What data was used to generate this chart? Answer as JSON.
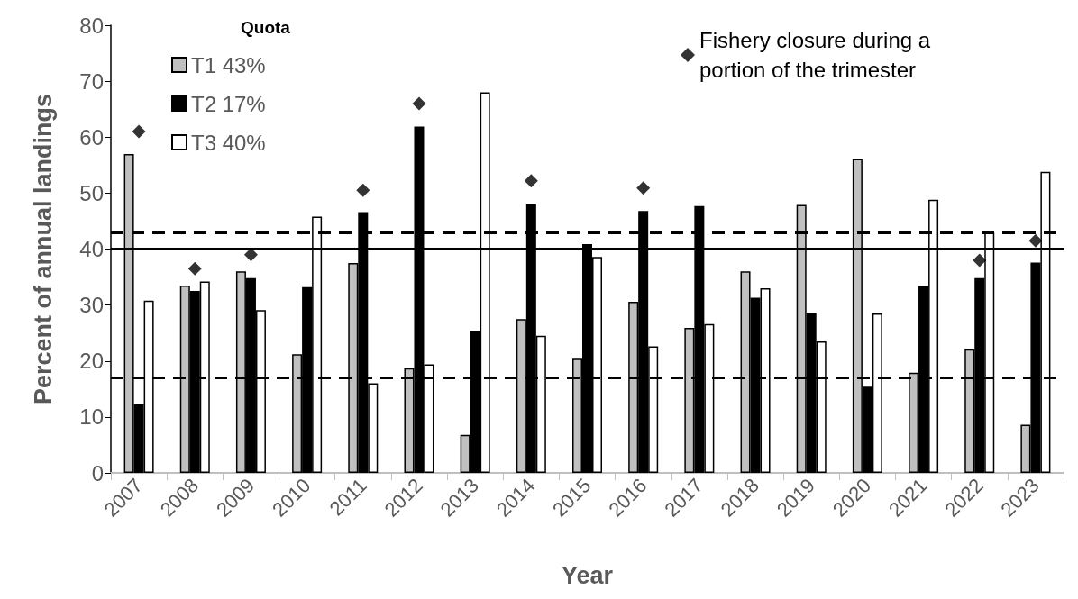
{
  "chart_data": {
    "type": "bar",
    "xlabel": "Year",
    "ylabel": "Percent of annual landings",
    "legend_title": "Quota",
    "categories": [
      "2007",
      "2008",
      "2009",
      "2010",
      "2011",
      "2012",
      "2013",
      "2014",
      "2015",
      "2016",
      "2017",
      "2018",
      "2019",
      "2020",
      "2021",
      "2022",
      "2023"
    ],
    "series": [
      {
        "name": "T1 43%",
        "color": "#c0c0c0",
        "values": [
          57,
          33.5,
          36,
          21.2,
          37.5,
          18.7,
          6.8,
          27.5,
          20.4,
          30.6,
          25.9,
          36,
          47.9,
          56.1,
          17.9,
          22.1,
          8.6
        ]
      },
      {
        "name": "T2 17%",
        "color": "#000000",
        "values": [
          12.3,
          32.5,
          34.8,
          33.2,
          46.6,
          61.9,
          25.3,
          48.1,
          40.9,
          46.8,
          47.7,
          31.3,
          28.6,
          15.4,
          33.4,
          34.8,
          37.6
        ]
      },
      {
        "name": "T3 40%",
        "color": "#ffffff",
        "values": [
          30.8,
          34.2,
          29.1,
          45.8,
          16,
          19.4,
          68,
          24.5,
          38.6,
          22.6,
          26.6,
          33,
          23.5,
          28.5,
          48.8,
          42.9,
          53.8
        ]
      },
      {
        "name": "Fishery closure during a portion of the trimester",
        "type": "scatter",
        "marker": "diamond",
        "color": "#000000",
        "values": [
          61,
          36.5,
          39,
          null,
          50.5,
          66,
          null,
          52.2,
          null,
          50.9,
          null,
          null,
          null,
          null,
          null,
          38,
          41.5
        ]
      }
    ],
    "ref_lines": [
      {
        "axis": "y",
        "value": 43,
        "color": "#000000",
        "line_style": "dashed"
      },
      {
        "axis": "y",
        "value": 40,
        "color": "#000000",
        "line_style": "solid"
      },
      {
        "axis": "y",
        "value": 17,
        "color": "#000000",
        "line_style": "dashed"
      }
    ],
    "ylim": [
      0,
      80
    ],
    "yticks": [
      0,
      10,
      20,
      30,
      40,
      50,
      60,
      70,
      80
    ],
    "grid": false,
    "legend": "top left"
  }
}
